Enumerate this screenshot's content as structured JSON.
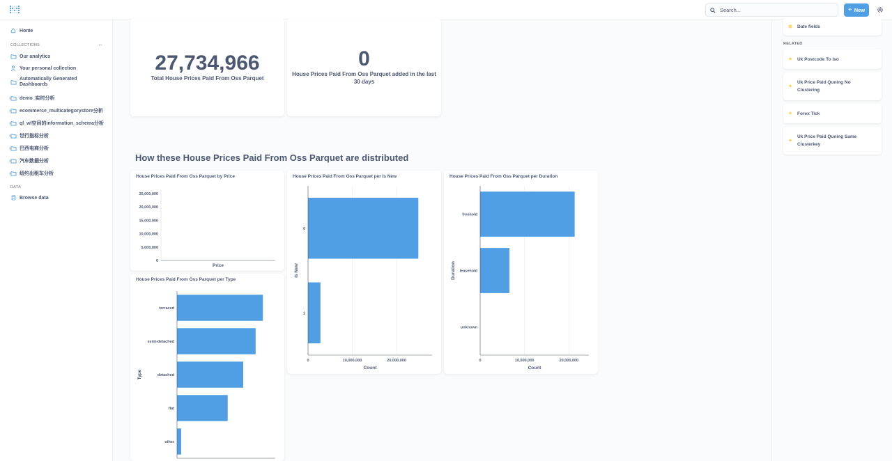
{
  "topbar": {
    "search_placeholder": "Search...",
    "new_label": "New"
  },
  "sidebar": {
    "home_label": "Home",
    "collections_label": "COLLECTIONS",
    "collections": [
      "Our analytics",
      "Your personal collection",
      "Automatically Generated Dashboards",
      "demo_实时分析",
      "ecommerce_multicategorystore分析",
      "ql_wl空间的information_schema分析",
      "世行指标分析",
      "巴西电商分析",
      "汽车数据分析",
      "纽约出租车分析"
    ],
    "data_label": "DATA",
    "browse_data_label": "Browse data"
  },
  "scalars": [
    {
      "value": "27,734,966",
      "label": "Total House Prices Paid From Oss Parquet"
    },
    {
      "value": "0",
      "label": "House Prices Paid From Oss Parquet added in the last 30 days"
    }
  ],
  "section_heading": "How these House Prices Paid From Oss Parquet are distributed",
  "right_panel": {
    "date_fields_label": "Date fields",
    "related_label": "RELATED",
    "related_items": [
      "Uk Postcode To Iso",
      "Uk Price Paid Quning No Clustering",
      "Forex Tick",
      "Uk Price Paid Quning Same Clusterkey"
    ]
  },
  "colors": {
    "accent": "#509ee3",
    "bar": "#509ee3",
    "text": "#4c5773",
    "star": "#f9cf48"
  },
  "chart_data": [
    {
      "type": "bar",
      "orientation": "vertical",
      "title": "House Prices Paid From Oss Parquet by Price",
      "xlabel": "Price",
      "ylabel": "",
      "categories": [],
      "values": [],
      "ylim": [
        0,
        25000000
      ],
      "y_ticks": [
        "0",
        "5,000,000",
        "10,000,000",
        "15,000,000",
        "20,000,000",
        "25,000,000"
      ],
      "grid": true
    },
    {
      "type": "bar",
      "orientation": "horizontal",
      "title": "House Prices Paid From Oss Parquet per Is New",
      "xlabel": "Count",
      "ylabel": "Is New",
      "categories": [
        "0",
        "1"
      ],
      "values": [
        24900000,
        2800000
      ],
      "xlim": [
        0,
        28000000
      ],
      "x_ticks": [
        0,
        10000000,
        20000000
      ],
      "x_tick_labels": [
        "0",
        "10,000,000",
        "20,000,000"
      ],
      "grid": true
    },
    {
      "type": "bar",
      "orientation": "horizontal",
      "title": "House Prices Paid From Oss Parquet per Duration",
      "xlabel": "Count",
      "ylabel": "Duration",
      "categories": [
        "freehold",
        "leasehold",
        "unknown"
      ],
      "values": [
        21300000,
        6600000,
        0
      ],
      "xlim": [
        0,
        24500000
      ],
      "x_ticks": [
        0,
        10000000,
        20000000
      ],
      "x_tick_labels": [
        "0",
        "10,000,000",
        "20,000,000"
      ],
      "grid": true
    },
    {
      "type": "bar",
      "orientation": "horizontal",
      "title": "House Prices Paid From Oss Parquet per Type",
      "xlabel": "",
      "ylabel": "Type",
      "categories": [
        "terraced",
        "semi-detached",
        "detached",
        "flat",
        "other"
      ],
      "values": [
        8300000,
        7600000,
        6400000,
        4900000,
        400000
      ],
      "xlim": [
        0,
        9500000
      ],
      "grid": true
    }
  ]
}
